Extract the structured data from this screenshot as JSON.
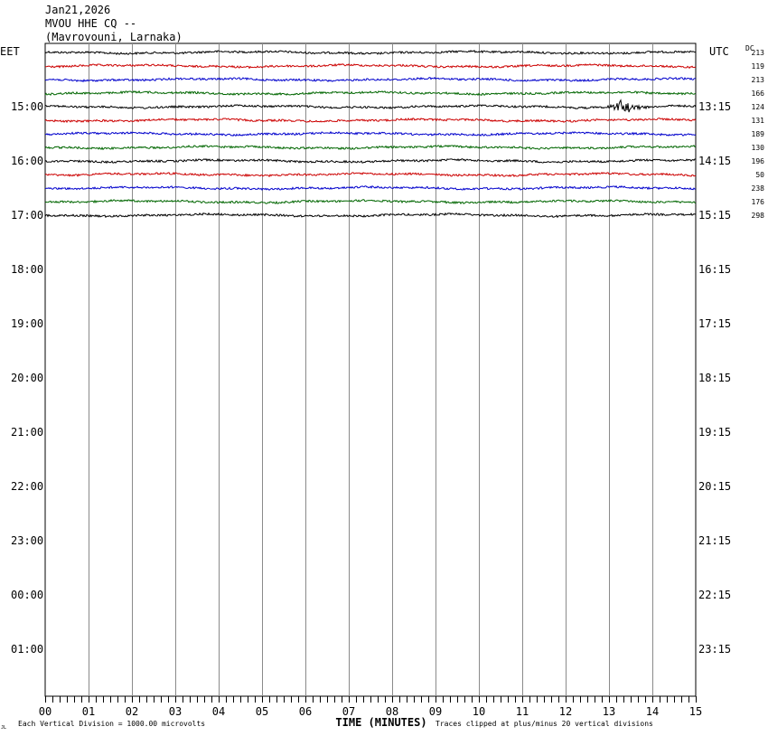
{
  "header": {
    "date": "Jan21,2026",
    "station": "MVOU HHE CQ --",
    "location": "(Mavrovouni, Larnaka)"
  },
  "left_zone_label": "EET",
  "right_zone_label": "UTC",
  "dc_label": "DC",
  "footer": {
    "scale_note": "Each Vertical Division = 1000.00 microvolts",
    "x_axis_title": "TIME (MINUTES)",
    "clip_note": "Traces clipped at plus/minus 20 vertical divisions",
    "corner_mark": "JL"
  },
  "chart_data": {
    "type": "line",
    "title": "MVOU HHE CQ --",
    "xlabel": "TIME (MINUTES)",
    "xlim": [
      0,
      15
    ],
    "x_ticks": [
      "00",
      "01",
      "02",
      "03",
      "04",
      "05",
      "06",
      "07",
      "08",
      "09",
      "10",
      "11",
      "12",
      "13",
      "14",
      "15"
    ],
    "grid": true,
    "rows_total": 48,
    "left_labels": [
      {
        "row": 4,
        "text": "15:00"
      },
      {
        "row": 8,
        "text": "16:00"
      },
      {
        "row": 12,
        "text": "17:00"
      },
      {
        "row": 16,
        "text": "18:00"
      },
      {
        "row": 20,
        "text": "19:00"
      },
      {
        "row": 24,
        "text": "20:00"
      },
      {
        "row": 28,
        "text": "21:00"
      },
      {
        "row": 32,
        "text": "22:00"
      },
      {
        "row": 36,
        "text": "23:00"
      },
      {
        "row": 40,
        "text": "00:00"
      },
      {
        "row": 44,
        "text": "01:00"
      }
    ],
    "right_labels": [
      {
        "row": 4,
        "text": "13:15"
      },
      {
        "row": 8,
        "text": "14:15"
      },
      {
        "row": 12,
        "text": "15:15"
      },
      {
        "row": 16,
        "text": "16:15"
      },
      {
        "row": 20,
        "text": "17:15"
      },
      {
        "row": 24,
        "text": "18:15"
      },
      {
        "row": 28,
        "text": "19:15"
      },
      {
        "row": 32,
        "text": "20:15"
      },
      {
        "row": 36,
        "text": "21:15"
      },
      {
        "row": 40,
        "text": "22:15"
      },
      {
        "row": 44,
        "text": "23:15"
      }
    ],
    "traces": [
      {
        "row": 0,
        "color": "#000000",
        "dc": "213"
      },
      {
        "row": 1,
        "color": "#cc0000",
        "dc": "119"
      },
      {
        "row": 2,
        "color": "#0000cc",
        "dc": "213"
      },
      {
        "row": 3,
        "color": "#006600",
        "dc": "166"
      },
      {
        "row": 4,
        "color": "#000000",
        "dc": "124",
        "event": {
          "start_min": 12.9,
          "end_min": 13.9,
          "peak_min": 13.3
        }
      },
      {
        "row": 5,
        "color": "#cc0000",
        "dc": "131"
      },
      {
        "row": 6,
        "color": "#0000cc",
        "dc": "189"
      },
      {
        "row": 7,
        "color": "#006600",
        "dc": "130"
      },
      {
        "row": 8,
        "color": "#000000",
        "dc": "196"
      },
      {
        "row": 9,
        "color": "#cc0000",
        "dc": "50"
      },
      {
        "row": 10,
        "color": "#0000cc",
        "dc": "238"
      },
      {
        "row": 11,
        "color": "#006600",
        "dc": "176"
      },
      {
        "row": 12,
        "color": "#000000",
        "dc": "298"
      }
    ]
  }
}
